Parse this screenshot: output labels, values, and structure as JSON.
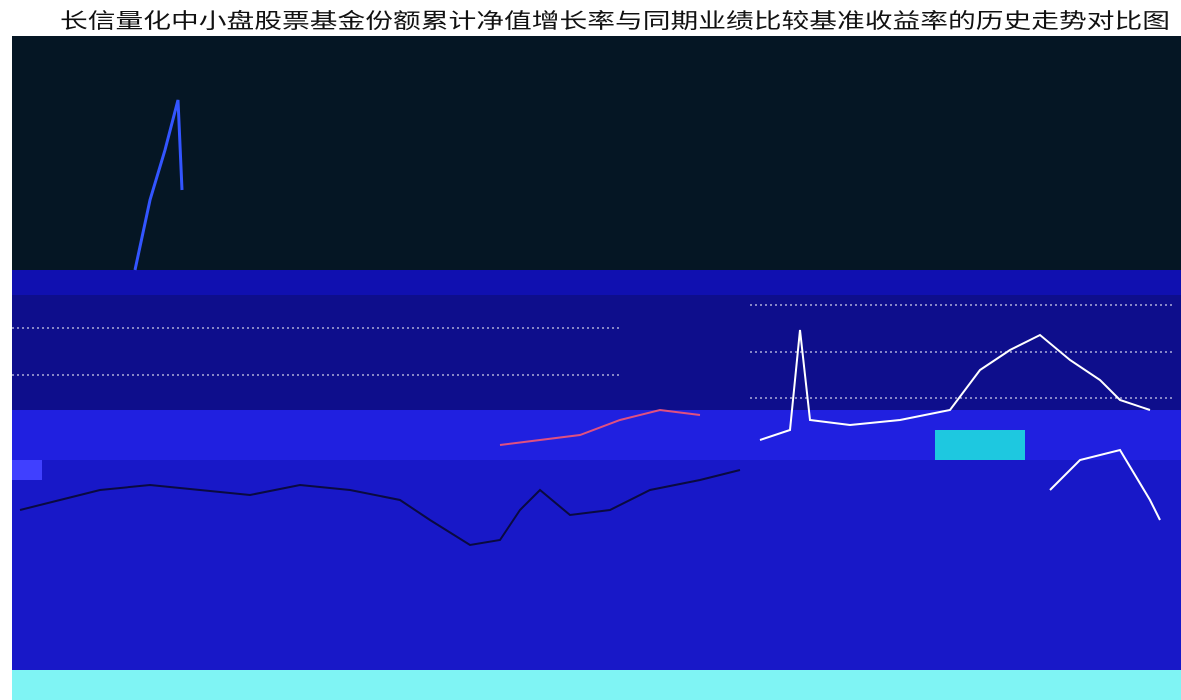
{
  "header": {
    "title": "长信量化中小盘股票基金份额累计净值增长率与同期业绩比较基准收益率的历史走势对比图"
  }
}
